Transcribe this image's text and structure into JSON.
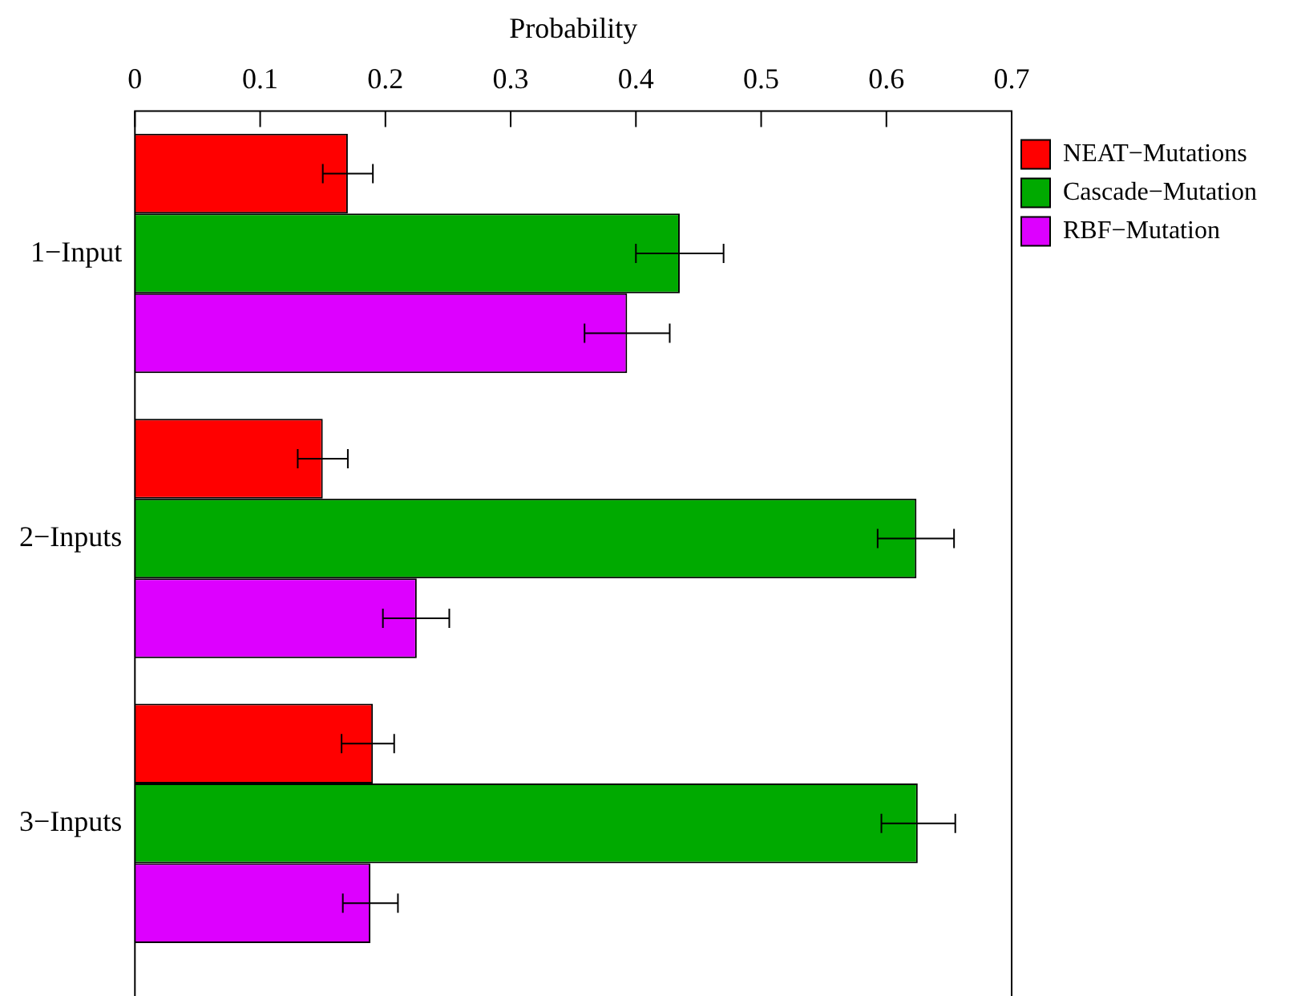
{
  "chart_data": {
    "type": "bar",
    "orientation": "horizontal",
    "xlabel": "Probability",
    "categories": [
      "1−Input",
      "2−Inputs",
      "3−Inputs"
    ],
    "xlim": [
      0,
      0.7
    ],
    "xticks": [
      0,
      0.1,
      0.2,
      0.3,
      0.4,
      0.5,
      0.6,
      0.7
    ],
    "grid": false,
    "legend": "top right",
    "series": [
      {
        "name": "NEAT−Mutations",
        "color": "#ff0000",
        "values": [
          0.17,
          0.15,
          0.19
        ],
        "errors": [
          [
            0.15,
            0.19
          ],
          [
            0.13,
            0.17
          ],
          [
            0.165,
            0.207
          ]
        ]
      },
      {
        "name": "Cascade−Mutation",
        "color": "#00aa00",
        "values": [
          0.435,
          0.624,
          0.625
        ],
        "errors": [
          [
            0.4,
            0.47
          ],
          [
            0.593,
            0.654
          ],
          [
            0.596,
            0.655
          ]
        ]
      },
      {
        "name": "RBF−Mutation",
        "color": "#dd00ff",
        "values": [
          0.393,
          0.225,
          0.188
        ],
        "errors": [
          [
            0.359,
            0.427
          ],
          [
            0.198,
            0.251
          ],
          [
            0.166,
            0.21
          ]
        ]
      }
    ]
  }
}
